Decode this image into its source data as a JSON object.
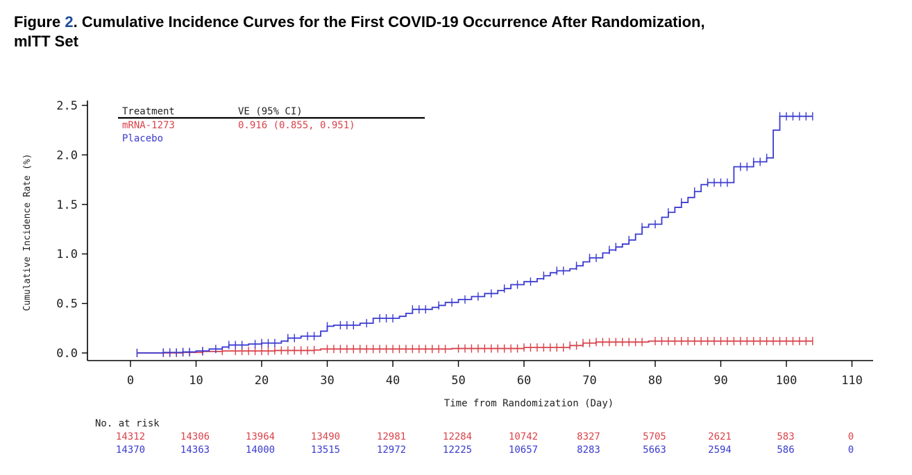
{
  "figure": {
    "label": "Figure",
    "number": "2",
    "title_line1": ". Cumulative Incidence Curves for the First COVID-19 Occurrence After Randomization,",
    "title_line2": "mITT Set"
  },
  "colors": {
    "mrna": "#d9424a",
    "placebo": "#3a3ad0",
    "axis": "#000000"
  },
  "chart_data": {
    "type": "line",
    "step": true,
    "xlabel": "Time from Randomization (Day)",
    "ylabel": "Cumulative Incidence Rate (%)",
    "xlim": [
      -5,
      112
    ],
    "ylim": [
      -0.06,
      2.55
    ],
    "xticks": [
      0,
      10,
      20,
      30,
      40,
      50,
      60,
      70,
      80,
      90,
      100,
      110
    ],
    "xtick_labels": [
      "0",
      "10",
      "20",
      "30",
      "40",
      "50",
      "60",
      "70",
      "80",
      "90",
      "100",
      "110"
    ],
    "yticks": [
      0.0,
      0.5,
      1.0,
      1.5,
      2.0,
      2.5
    ],
    "ytick_labels": [
      "0.0",
      "0.5",
      "1.0",
      "1.5",
      "2.0",
      "2.5"
    ],
    "legend": {
      "header_treatment": "Treatment",
      "header_ve": "VE (95% CI)",
      "ve_value": "0.916 (0.855, 0.951)",
      "position": "top-left"
    },
    "series": [
      {
        "name": "mRNA-1273",
        "color": "#d9424a",
        "x": [
          1,
          8,
          11,
          14,
          22,
          28,
          29,
          49,
          60,
          67,
          69,
          71,
          79,
          104
        ],
        "y": [
          0,
          0.005,
          0.015,
          0.02,
          0.025,
          0.03,
          0.04,
          0.045,
          0.055,
          0.075,
          0.1,
          0.11,
          0.12,
          0.12
        ]
      },
      {
        "name": "Placebo",
        "color": "#3a3ad0",
        "x": [
          1,
          5,
          8,
          10,
          12,
          14,
          15,
          18,
          20,
          23,
          24,
          26,
          29,
          30,
          31,
          35,
          37,
          41,
          42,
          43,
          46,
          47,
          48,
          50,
          52,
          54,
          56,
          57,
          58,
          60,
          62,
          63,
          64,
          65,
          67,
          68,
          69,
          70,
          72,
          73,
          74,
          75,
          76,
          77,
          78,
          79,
          81,
          82,
          83,
          84,
          85,
          86,
          87,
          88,
          92,
          95,
          97,
          98,
          99,
          104
        ],
        "y": [
          0,
          0.005,
          0.01,
          0.02,
          0.04,
          0.06,
          0.08,
          0.09,
          0.1,
          0.12,
          0.15,
          0.17,
          0.22,
          0.27,
          0.28,
          0.3,
          0.35,
          0.37,
          0.4,
          0.44,
          0.46,
          0.48,
          0.51,
          0.54,
          0.57,
          0.6,
          0.63,
          0.65,
          0.69,
          0.72,
          0.75,
          0.78,
          0.81,
          0.83,
          0.85,
          0.88,
          0.92,
          0.96,
          1.01,
          1.04,
          1.07,
          1.1,
          1.14,
          1.2,
          1.27,
          1.3,
          1.37,
          1.42,
          1.47,
          1.52,
          1.57,
          1.63,
          1.7,
          1.72,
          1.88,
          1.93,
          1.97,
          2.25,
          2.39,
          2.39
        ]
      }
    ],
    "censor_ticks": {
      "mRNA-1273": [
        1,
        5,
        6,
        7,
        8,
        9,
        11,
        14,
        16,
        17,
        18,
        19,
        20,
        21,
        22,
        23,
        24,
        25,
        26,
        27,
        28,
        30,
        31,
        32,
        33,
        34,
        35,
        36,
        37,
        38,
        39,
        40,
        41,
        42,
        43,
        44,
        45,
        46,
        47,
        48,
        50,
        51,
        52,
        53,
        54,
        55,
        56,
        57,
        58,
        59,
        60,
        61,
        62,
        63,
        64,
        65,
        66,
        67,
        68,
        69,
        70,
        71,
        72,
        73,
        74,
        75,
        76,
        77,
        78,
        80,
        81,
        82,
        83,
        84,
        85,
        86,
        87,
        88,
        89,
        90,
        91,
        92,
        93,
        94,
        95,
        96,
        97,
        98,
        99,
        100,
        101,
        102,
        103,
        104
      ],
      "Placebo": [
        1,
        5,
        6,
        7,
        8,
        9,
        11,
        13,
        15,
        16,
        17,
        19,
        20,
        21,
        22,
        24,
        25,
        27,
        28,
        30,
        32,
        33,
        34,
        36,
        38,
        39,
        40,
        43,
        44,
        45,
        47,
        49,
        51,
        53,
        55,
        57,
        59,
        61,
        63,
        65,
        66,
        68,
        70,
        71,
        73,
        74,
        76,
        78,
        80,
        82,
        84,
        86,
        88,
        89,
        90,
        91,
        93,
        94,
        95,
        96,
        97,
        99,
        100,
        101,
        102,
        103,
        104
      ]
    },
    "risk_table": {
      "header": "No. at risk",
      "days": [
        0,
        10,
        20,
        30,
        40,
        50,
        60,
        70,
        80,
        90,
        100,
        110
      ],
      "rows": [
        {
          "name": "mRNA-1273",
          "values": [
            "14312",
            "14306",
            "13964",
            "13490",
            "12981",
            "12284",
            "10742",
            "8327",
            "5705",
            "2621",
            "583",
            "0"
          ]
        },
        {
          "name": "Placebo",
          "values": [
            "14370",
            "14363",
            "14000",
            "13515",
            "12972",
            "12225",
            "10657",
            "8283",
            "5663",
            "2594",
            "586",
            "0"
          ]
        }
      ]
    }
  }
}
